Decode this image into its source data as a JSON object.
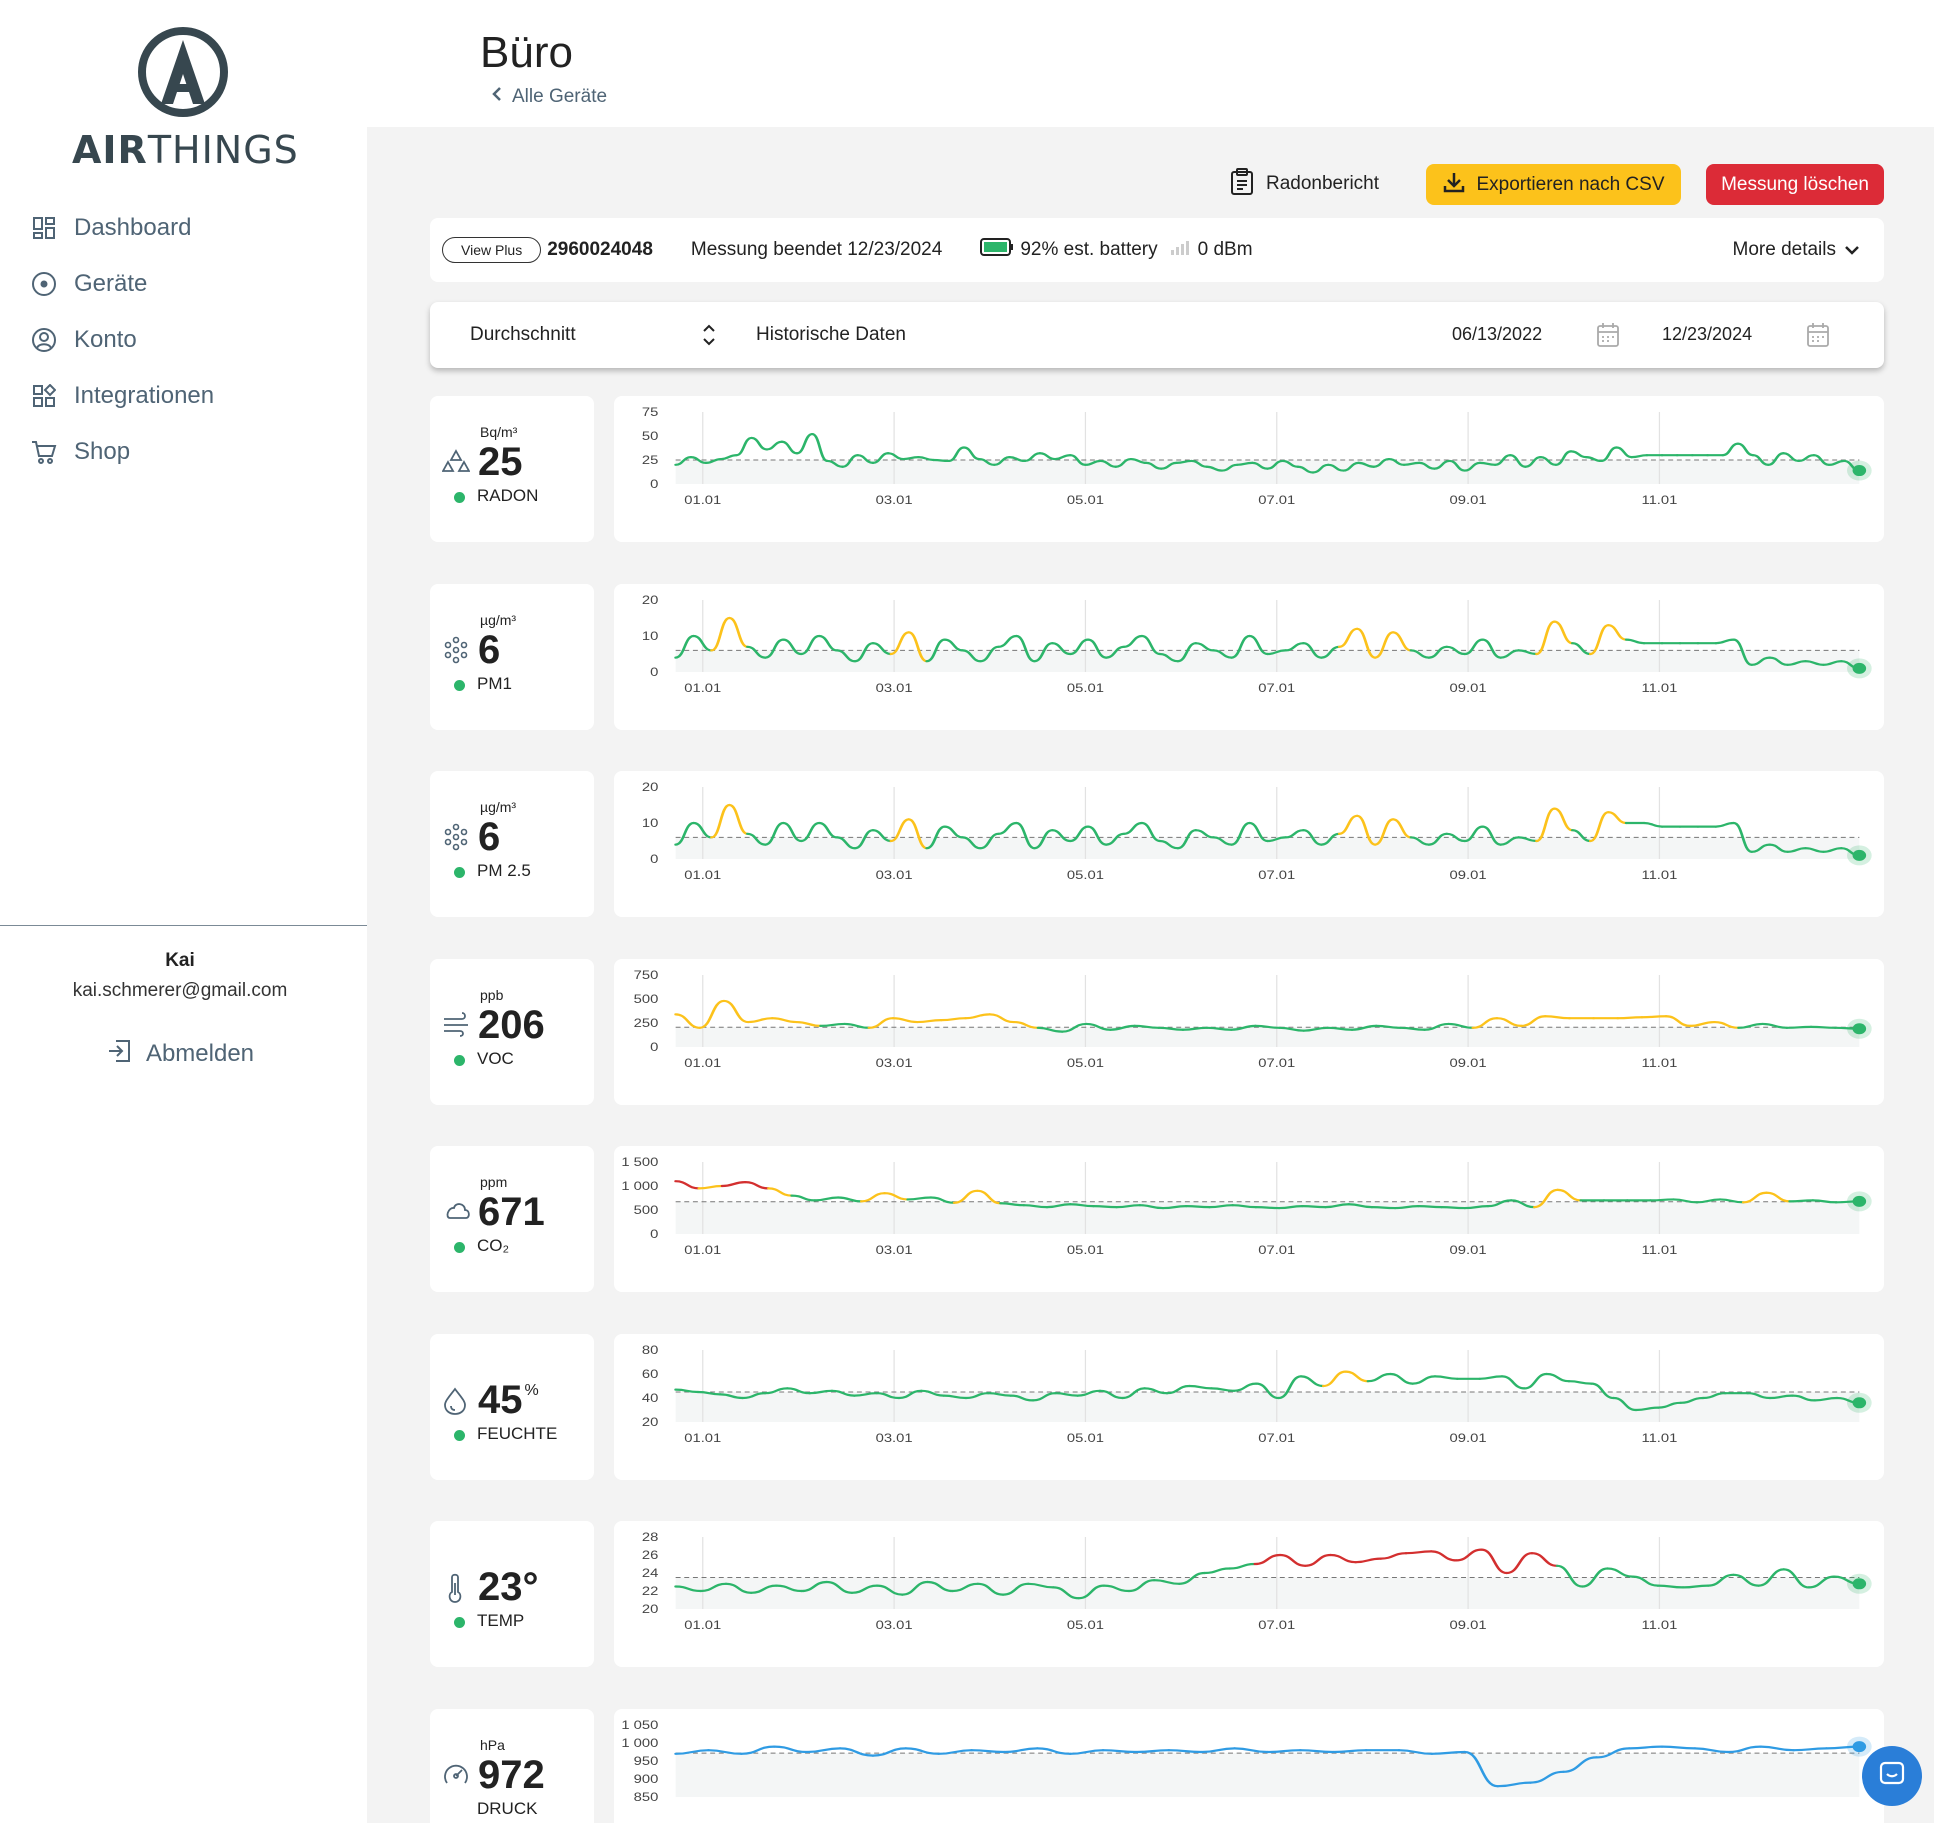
{
  "brand": {
    "logo_bold": "AIR",
    "logo_light": "THINGS"
  },
  "nav": [
    {
      "label": "Dashboard",
      "icon": "dashboard-icon"
    },
    {
      "label": "Geräte",
      "icon": "devices-icon"
    },
    {
      "label": "Konto",
      "icon": "account-icon"
    },
    {
      "label": "Integrationen",
      "icon": "integrations-icon"
    },
    {
      "label": "Shop",
      "icon": "cart-icon"
    }
  ],
  "user": {
    "name": "Kai",
    "email": "kai.schmerer@gmail.com",
    "logout_label": "Abmelden"
  },
  "header": {
    "title": "Büro",
    "back_label": "Alle Geräte"
  },
  "actions": {
    "radon_report": "Radonbericht",
    "export_csv": "Exportieren nach CSV",
    "delete_measurement": "Messung löschen"
  },
  "device": {
    "model": "View Plus",
    "serial": "2960024048",
    "measurement_status": "Messung beendet 12/23/2024",
    "battery": "92% est. battery",
    "signal": "0 dBm",
    "more_details": "More details"
  },
  "filter": {
    "aggregation": "Durchschnitt",
    "mode": "Historische Daten",
    "start_date": "06/13/2022",
    "end_date": "12/23/2024"
  },
  "colors": {
    "good": "#2cb56a",
    "fair": "#fcc21b",
    "poor": "#d32f2f",
    "pressure": "#2f9be3",
    "accent_export": "#fcc21b",
    "accent_delete": "#dc2b37"
  },
  "sensors": [
    {
      "name": "RADON",
      "unit": "Bq/m³",
      "value": "25",
      "sup": "",
      "icon": "radon-icon"
    },
    {
      "name": "PM1",
      "unit": "µg/m³",
      "value": "6",
      "sup": "",
      "icon": "particles-icon"
    },
    {
      "name": "PM 2.5",
      "unit": "µg/m³",
      "value": "6",
      "sup": "",
      "icon": "particles-icon"
    },
    {
      "name": "VOC",
      "unit": "ppb",
      "value": "206",
      "sup": "",
      "icon": "wind-icon"
    },
    {
      "name": "CO₂",
      "unit": "ppm",
      "value": "671",
      "sup": "",
      "icon": "cloud-icon"
    },
    {
      "name": "FEUCHTE",
      "unit": "",
      "value": "45",
      "sup": "%",
      "icon": "droplet-icon"
    },
    {
      "name": "TEMP",
      "unit": "",
      "value": "23°",
      "sup": "",
      "icon": "thermometer-icon"
    },
    {
      "name": "DRUCK",
      "unit": "hPa",
      "value": "972",
      "sup": "",
      "icon": "gauge-icon"
    }
  ],
  "chart_data": [
    {
      "type": "line",
      "sensor": "RADON",
      "y_ticks": [
        "75",
        "50",
        "25",
        "0"
      ],
      "ylim": [
        0,
        75
      ],
      "threshold": 25,
      "x_ticks": [
        "01.01",
        "03.01",
        "05.01",
        "07.01",
        "09.01",
        "11.01"
      ],
      "values": [
        20,
        28,
        22,
        26,
        30,
        48,
        36,
        44,
        32,
        52,
        24,
        18,
        30,
        22,
        32,
        26,
        28,
        25,
        24,
        38,
        26,
        20,
        28,
        24,
        32,
        26,
        30,
        20,
        24,
        18,
        26,
        22,
        16,
        22,
        24,
        18,
        14,
        20,
        22,
        16,
        24,
        18,
        12,
        20,
        14,
        22,
        18,
        26,
        20,
        22,
        16,
        24,
        14,
        22,
        20,
        30,
        18,
        28,
        20,
        34,
        28,
        24,
        38,
        28,
        30,
        30,
        30,
        30,
        30,
        30,
        42,
        30,
        20,
        32,
        24,
        30,
        20,
        24,
        14
      ],
      "fair_above": 100,
      "poor_above": 200
    },
    {
      "type": "line",
      "sensor": "PM1",
      "y_ticks": [
        "20",
        "10",
        "0"
      ],
      "ylim": [
        0,
        20
      ],
      "threshold": 6,
      "x_ticks": [
        "01.01",
        "03.01",
        "05.01",
        "07.01",
        "09.01",
        "11.01"
      ],
      "values": [
        4,
        10,
        6,
        15,
        7,
        4,
        9,
        5,
        10,
        6,
        3,
        8,
        5,
        11,
        3,
        9,
        6,
        3,
        7,
        10,
        3,
        8,
        5,
        9,
        4,
        7,
        10,
        5,
        3,
        8,
        6,
        4,
        10,
        5,
        6,
        8,
        4,
        7,
        12,
        4,
        11,
        6,
        4,
        7,
        5,
        9,
        4,
        6,
        5,
        14,
        8,
        5,
        13,
        9,
        8,
        8,
        8,
        8,
        8,
        9,
        2,
        4,
        2,
        3,
        2,
        3,
        1
      ],
      "fair_above": 10,
      "poor_above": 25
    },
    {
      "type": "line",
      "sensor": "PM 2.5",
      "y_ticks": [
        "20",
        "10",
        "0"
      ],
      "ylim": [
        0,
        20
      ],
      "threshold": 6,
      "x_ticks": [
        "01.01",
        "03.01",
        "05.01",
        "07.01",
        "09.01",
        "11.01"
      ],
      "values": [
        4,
        10,
        6,
        15,
        7,
        4,
        10,
        5,
        10,
        6,
        3,
        8,
        5,
        11,
        3,
        9,
        6,
        3,
        7,
        10,
        3,
        8,
        5,
        9,
        4,
        7,
        10,
        5,
        3,
        8,
        6,
        4,
        10,
        5,
        6,
        8,
        4,
        7,
        12,
        4,
        11,
        6,
        4,
        7,
        5,
        9,
        4,
        6,
        5,
        14,
        8,
        5,
        13,
        10,
        10,
        9,
        9,
        9,
        9,
        10,
        2,
        4,
        2,
        3,
        2,
        3,
        1
      ],
      "fair_above": 10,
      "poor_above": 25
    },
    {
      "type": "line",
      "sensor": "VOC",
      "y_ticks": [
        "750",
        "500",
        "250",
        "0"
      ],
      "ylim": [
        0,
        750
      ],
      "threshold": 206,
      "x_ticks": [
        "01.01",
        "03.01",
        "05.01",
        "07.01",
        "09.01",
        "11.01"
      ],
      "values": [
        340,
        200,
        480,
        260,
        300,
        260,
        220,
        240,
        200,
        300,
        260,
        280,
        300,
        340,
        260,
        200,
        160,
        240,
        180,
        220,
        200,
        180,
        200,
        180,
        220,
        200,
        170,
        200,
        180,
        220,
        200,
        180,
        240,
        200,
        300,
        220,
        320,
        300,
        300,
        300,
        310,
        320,
        220,
        260,
        200,
        240,
        200,
        210,
        200,
        190
      ],
      "fair_above": 250,
      "poor_above": 2000
    },
    {
      "type": "line",
      "sensor": "CO₂",
      "y_ticks": [
        "1 500",
        "1 000",
        "500",
        "0"
      ],
      "ylim": [
        0,
        1500
      ],
      "threshold": 671,
      "x_ticks": [
        "01.01",
        "03.01",
        "05.01",
        "07.01",
        "09.01",
        "11.01"
      ],
      "values": [
        1100,
        950,
        1000,
        1080,
        950,
        800,
        700,
        760,
        680,
        850,
        720,
        760,
        650,
        900,
        640,
        600,
        560,
        620,
        580,
        560,
        600,
        540,
        580,
        560,
        600,
        560,
        540,
        580,
        560,
        620,
        560,
        540,
        580,
        560,
        540,
        580,
        700,
        560,
        920,
        700,
        700,
        700,
        700,
        720,
        660,
        720,
        660,
        860,
        680,
        700,
        660,
        680
      ],
      "fair_above": 800,
      "poor_above": 1000
    },
    {
      "type": "line",
      "sensor": "FEUCHTE",
      "y_ticks": [
        "80",
        "60",
        "40",
        "20"
      ],
      "ylim": [
        20,
        80
      ],
      "threshold": 45,
      "x_ticks": [
        "01.01",
        "03.01",
        "05.01",
        "07.01",
        "09.01",
        "11.01"
      ],
      "values": [
        47,
        45,
        43,
        40,
        44,
        48,
        44,
        46,
        42,
        44,
        40,
        46,
        42,
        40,
        44,
        42,
        38,
        44,
        42,
        46,
        40,
        48,
        44,
        50,
        48,
        46,
        52,
        40,
        58,
        50,
        62,
        54,
        60,
        52,
        58,
        56,
        56,
        58,
        48,
        60,
        54,
        52,
        40,
        30,
        32,
        36,
        40,
        44,
        44,
        40,
        42,
        38,
        40,
        36
      ],
      "fair_above": 60,
      "poor_above": 70
    },
    {
      "type": "line",
      "sensor": "TEMP",
      "y_ticks": [
        "28",
        "26",
        "24",
        "22",
        "20"
      ],
      "ylim": [
        20,
        28
      ],
      "threshold": 23.5,
      "x_ticks": [
        "01.01",
        "03.01",
        "05.01",
        "07.01",
        "09.01",
        "11.01"
      ],
      "values": [
        22.5,
        22,
        22.8,
        21.8,
        22.6,
        22,
        23,
        21.8,
        22.6,
        21.6,
        23,
        22,
        22.8,
        21.6,
        22.8,
        22.4,
        21.2,
        22.6,
        22,
        23.2,
        22.8,
        24,
        24.5,
        25,
        26,
        24.8,
        26,
        25.2,
        25.6,
        26.2,
        26.4,
        25.4,
        26.6,
        24,
        26.2,
        24.8,
        22.5,
        24.5,
        23.6,
        22.6,
        22.4,
        22.6,
        23.8,
        22.6,
        24.4,
        22.4,
        23.6,
        22.8
      ],
      "fair_above": 25,
      "poor_above": 25.5
    },
    {
      "type": "line",
      "sensor": "DRUCK",
      "y_ticks": [
        "1 050",
        "1 000",
        "950",
        "900",
        "850"
      ],
      "ylim": [
        850,
        1050
      ],
      "threshold": 972,
      "x_ticks": [],
      "values": [
        970,
        980,
        970,
        990,
        975,
        985,
        965,
        985,
        970,
        980,
        975,
        985,
        970,
        980,
        975,
        980,
        975,
        985,
        975,
        980,
        975,
        980,
        980,
        970,
        975,
        880,
        890,
        920,
        960,
        985,
        990,
        985,
        975,
        990,
        980,
        985,
        990
      ],
      "fair_above": 5000,
      "poor_above": 5000
    }
  ]
}
